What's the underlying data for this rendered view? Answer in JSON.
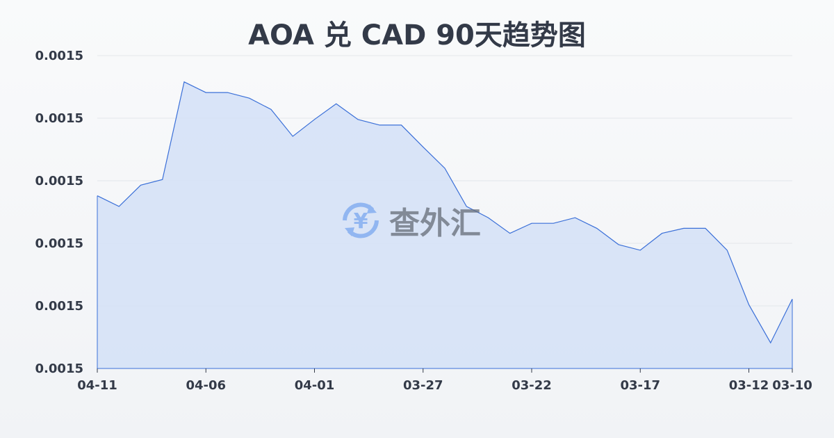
{
  "chart_data": {
    "type": "area",
    "title": "AOA 兑 CAD 90天趋势图",
    "xlabel": "",
    "ylabel": "",
    "x": [
      "04-11",
      "04-10",
      "04-09",
      "04-08",
      "04-07",
      "04-06",
      "04-05",
      "04-04",
      "04-03",
      "04-02",
      "04-01",
      "03-31",
      "03-30",
      "03-29",
      "03-28",
      "03-27",
      "03-26",
      "03-25",
      "03-24",
      "03-23",
      "03-22",
      "03-21",
      "03-20",
      "03-19",
      "03-18",
      "03-17",
      "03-16",
      "03-15",
      "03-14",
      "03-13",
      "03-12",
      "03-11",
      "03-10"
    ],
    "values": [
      0.0015176,
      0.0015159,
      0.0015193,
      0.0015202,
      0.0015358,
      0.0015341,
      0.0015341,
      0.0015332,
      0.0015314,
      0.0015271,
      0.0015298,
      0.0015323,
      0.0015298,
      0.0015289,
      0.0015289,
      0.0015254,
      0.001522,
      0.0015159,
      0.0015141,
      0.0015116,
      0.0015132,
      0.0015132,
      0.0015141,
      0.0015124,
      0.0015098,
      0.0015089,
      0.0015116,
      0.0015124,
      0.0015124,
      0.0015089,
      0.0015002,
      0.0014941,
      0.0015011
    ],
    "ylim": [
      0.00149,
      0.00154
    ],
    "y_ticks": [
      0.00154,
      0.00153,
      0.00152,
      0.00151,
      0.0015,
      0.00149
    ],
    "y_tick_labels": [
      "0.0015",
      "0.0015",
      "0.0015",
      "0.0015",
      "0.0015",
      "0.0015"
    ],
    "x_tick_labels": [
      {
        "label": "04-11",
        "index": 0
      },
      {
        "label": "04-06",
        "index": 5
      },
      {
        "label": "04-01",
        "index": 10
      },
      {
        "label": "03-27",
        "index": 15
      },
      {
        "label": "03-22",
        "index": 20
      },
      {
        "label": "03-17",
        "index": 25
      },
      {
        "label": "03-12",
        "index": 30
      },
      {
        "label": "03-10",
        "index": 32
      }
    ],
    "grid": true,
    "colors": {
      "line": "#3a6fd8",
      "fill": "#d4e0f7"
    }
  },
  "watermark": {
    "text": "查外汇",
    "icon": "yen-exchange-icon"
  }
}
